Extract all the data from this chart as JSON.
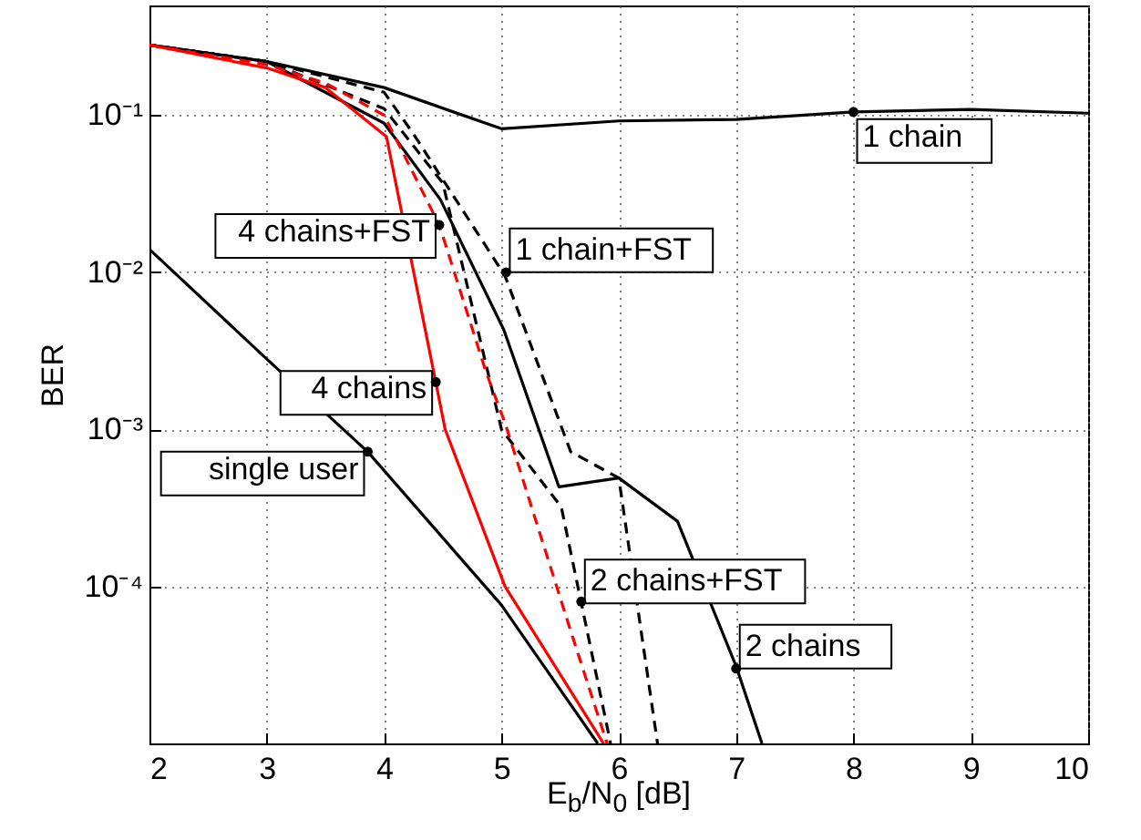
{
  "chart_data": {
    "type": "line",
    "xlabel": "E$_{b}$/N$_{0}$ [dB]",
    "ylabel": "BER",
    "log": "y",
    "grid": true,
    "xlim": [
      2,
      10
    ],
    "xticks": [
      2,
      3,
      4,
      5,
      6,
      7,
      8,
      9,
      10
    ],
    "ylim": [
      1e-05,
      0.5
    ],
    "yticks": [
      {
        "value": 0.1,
        "label": "10⁻¹"
      },
      {
        "value": 0.01,
        "label": "10⁻²"
      },
      {
        "value": 0.001,
        "label": "10⁻³"
      },
      {
        "value": 0.0001,
        "label": "10⁻⁴"
      }
    ],
    "series": [
      {
        "color": "#000000",
        "line_style": "solid",
        "x": [
          2,
          3,
          3.86,
          5,
          5.82
        ],
        "values": [
          0.014,
          0.0028,
          0.00072,
          7.6e-05,
          1e-05
        ]
      },
      {
        "color": "#000000",
        "line_style": "solid",
        "x": [
          2,
          3,
          4,
          5,
          6,
          7,
          8,
          9,
          10
        ],
        "values": [
          0.28,
          0.22,
          0.15,
          0.082,
          0.092,
          0.094,
          0.105,
          0.109,
          0.103
        ]
      },
      {
        "color": "#000000",
        "line_style": "dashed",
        "x": [
          2,
          3,
          4,
          4.25,
          5.03,
          5.59,
          6.0,
          6.33
        ],
        "values": [
          0.28,
          0.22,
          0.14,
          0.076,
          0.0095,
          0.00072,
          0.00049,
          1e-05
        ]
      },
      {
        "color": "#000000",
        "line_style": "dashed",
        "x": [
          2,
          3,
          4,
          4.5,
          5.0,
          5.51,
          5.93
        ],
        "values": [
          0.28,
          0.22,
          0.11,
          0.037,
          0.001,
          0.00032,
          1e-05
        ]
      },
      {
        "color": "#000000",
        "line_style": "solid",
        "x": [
          2,
          3,
          4,
          4.48,
          5.02,
          5.49,
          6.0,
          6.5,
          7.0,
          7.22
        ],
        "values": [
          0.28,
          0.22,
          0.089,
          0.029,
          0.0043,
          0.00043,
          0.00049,
          0.00026,
          3.1e-05,
          1e-05
        ]
      },
      {
        "color": "#ff0000",
        "line_style": "solid",
        "x": [
          2,
          3,
          3.5,
          4.02,
          4.44,
          4.52,
          5.03,
          5.87
        ],
        "values": [
          0.28,
          0.2,
          0.15,
          0.073,
          0.002,
          0.001,
          0.0001,
          1e-05
        ]
      },
      {
        "color": "#ff0000",
        "line_style": "dashed",
        "x": [
          2,
          3,
          3.5,
          4,
          4.47,
          4.87,
          5.03,
          5.59,
          5.9
        ],
        "values": [
          0.28,
          0.21,
          0.16,
          0.1,
          0.02,
          0.0023,
          0.0011,
          5.2e-05,
          1e-05
        ]
      }
    ],
    "annotations": [
      {
        "text": "1 chain",
        "x": 8,
        "y": 0.105
      },
      {
        "text": "1 chain+FST",
        "x": 5.04,
        "y": 0.01
      },
      {
        "text": "4 chains+FST",
        "x": 4.47,
        "y": 0.02
      },
      {
        "text": "4 chains",
        "x": 4.44,
        "y": 0.002
      },
      {
        "text": "single user",
        "x": 3.86,
        "y": 0.00072
      },
      {
        "text": "2 chains+FST",
        "x": 5.68,
        "y": 8e-05
      },
      {
        "text": "2 chains",
        "x": 7,
        "y": 3e-05
      }
    ]
  }
}
